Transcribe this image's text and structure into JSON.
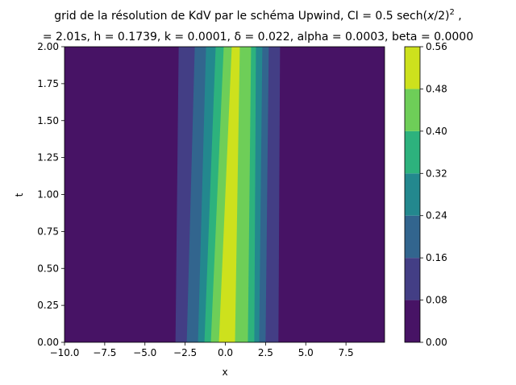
{
  "chart_data": {
    "type": "heatmap",
    "subtype": "filled-contour",
    "title_line1_prefix": "grid de la résolution de KdV par le schéma Upwind, CI = 0.5 sech",
    "title_line1_arg": "x",
    "title_line1_suffix": "/2)",
    "title_line1_power": "2",
    "title_line1_end": " ,",
    "title_line2": "= 2.01s, h = 0.1739, k = 0.0001, δ = 0.022,  alpha = 0.0003, beta = 0.0000",
    "xlabel": "x",
    "ylabel": "t",
    "xlim": [
      -10,
      9.9
    ],
    "ylim": [
      0,
      2
    ],
    "x_ticks": [
      "−10.0",
      "−7.5",
      "−5.0",
      "−2.5",
      "0.0",
      "2.5",
      "5.0",
      "7.5"
    ],
    "x_tick_values": [
      -10,
      -7.5,
      -5,
      -2.5,
      0,
      2.5,
      5,
      7.5
    ],
    "y_ticks": [
      "0.00",
      "0.25",
      "0.50",
      "0.75",
      "1.00",
      "1.25",
      "1.50",
      "1.75",
      "2.00"
    ],
    "y_tick_values": [
      0,
      0.25,
      0.5,
      0.75,
      1,
      1.25,
      1.5,
      1.75,
      2
    ],
    "colorbar": {
      "levels": [
        0,
        0.08,
        0.16,
        0.24,
        0.32,
        0.4,
        0.48,
        0.56
      ],
      "tick_labels": [
        "0.00",
        "0.08",
        "0.16",
        "0.24",
        "0.32",
        "0.40",
        "0.48",
        "0.56"
      ],
      "colors": [
        "#471365",
        "#433e85",
        "#32658e",
        "#23888e",
        "#2db27d",
        "#6ece58",
        "#cde11d"
      ]
    },
    "bands": [
      {
        "level": 1,
        "x_left_t0": -3.1,
        "x_right_t0": 3.3,
        "x_left_t2": -2.9,
        "x_right_t2": 3.4
      },
      {
        "level": 2,
        "x_left_t0": -2.4,
        "x_right_t0": 2.5,
        "x_left_t2": -1.9,
        "x_right_t2": 2.7
      },
      {
        "level": 3,
        "x_left_t0": -1.7,
        "x_right_t0": 2.1,
        "x_left_t2": -1.2,
        "x_right_t2": 2.3
      },
      {
        "level": 4,
        "x_left_t0": -1.3,
        "x_right_t0": 1.8,
        "x_left_t2": -0.6,
        "x_right_t2": 1.9
      },
      {
        "level": 5,
        "x_left_t0": -0.9,
        "x_right_t0": 1.4,
        "x_left_t2": -0.1,
        "x_right_t2": 1.6
      },
      {
        "level": 6,
        "x_left_t0": -0.4,
        "x_right_t0": 0.6,
        "x_left_t2": 0.4,
        "x_right_t2": 0.9
      }
    ]
  }
}
